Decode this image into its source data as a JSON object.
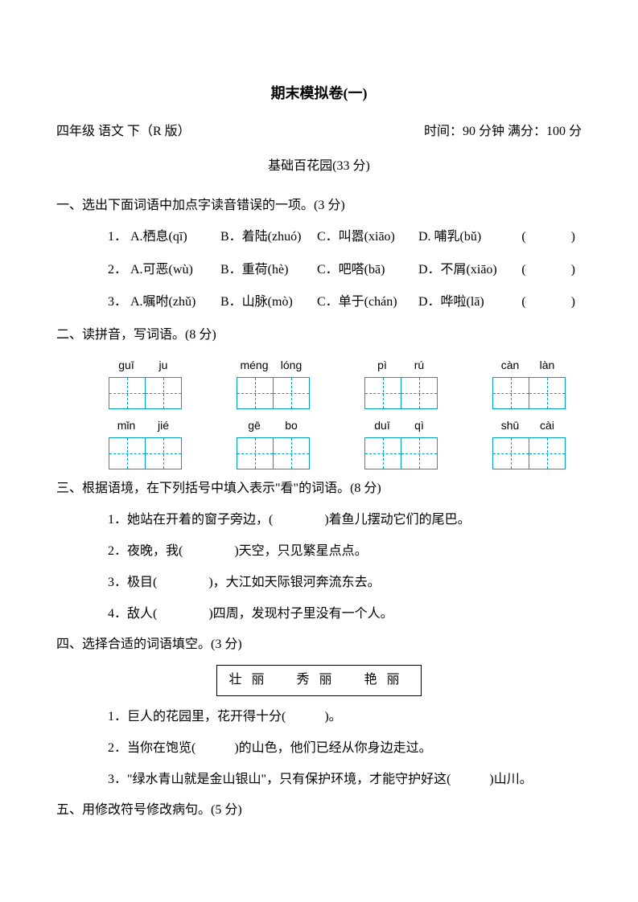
{
  "title": "期末模拟卷(一)",
  "meta": {
    "left": "四年级 语文 下（R 版）",
    "right": "时间：90 分钟 满分：100 分"
  },
  "subtitle": "基础百花园(33 分)",
  "section1": {
    "heading": "一、选出下面词语中加点字读音错误的一项。(3 分)",
    "items": [
      {
        "num": "1．",
        "a": "A.栖息(qī)",
        "b": "B．着陆(zhuó)",
        "c": "C．叫嚣(xiāo)",
        "d": "D. 哺乳(bǔ)",
        "paren": "(　　)"
      },
      {
        "num": "2．",
        "a": "A.可恶(wù)",
        "b": "B．重荷(hè)",
        "c": "C．吧嗒(bā)",
        "d": "D．不屑(xiāo)",
        "paren": "(　　)"
      },
      {
        "num": "3．",
        "a": "A.嘱咐(zhǔ)",
        "b": "B．山脉(mò)",
        "c": "C．单于(chán)",
        "d": "D．哗啦(lā)",
        "paren": "(　　)"
      }
    ]
  },
  "section2": {
    "heading": "二、读拼音，写词语。(8 分)",
    "rows": [
      [
        {
          "p1": "guī",
          "p2": "ju"
        },
        {
          "p1": "méng",
          "p2": "lóng"
        },
        {
          "p1": "pì",
          "p2": "rú"
        },
        {
          "p1": "càn",
          "p2": "làn"
        }
      ],
      [
        {
          "p1": "mǐn",
          "p2": "jié"
        },
        {
          "p1": "gē",
          "p2": "bo"
        },
        {
          "p1": "duī",
          "p2": "qì"
        },
        {
          "p1": "shū",
          "p2": "cài"
        }
      ]
    ]
  },
  "section3": {
    "heading": "三、根据语境，在下列括号中填入表示\"看\"的词语。(8 分)",
    "items": [
      {
        "num": "1．",
        "text": "她站在开着的窗子旁边，(　　　　)着鱼儿摆动它们的尾巴。"
      },
      {
        "num": "2．",
        "text": "夜晚，我(　　　　)天空，只见繁星点点。"
      },
      {
        "num": "3．",
        "text": "极目(　　　　)，大江如天际银河奔流东去。"
      },
      {
        "num": "4．",
        "text": "敌人(　　　　)四周，发现村子里没有一个人。"
      }
    ]
  },
  "section4": {
    "heading": "四、选择合适的词语填空。(3 分)",
    "wordbox": "壮丽　秀丽　艳丽",
    "items": [
      {
        "num": "1．",
        "text": "巨人的花园里，花开得十分(　　　)。"
      },
      {
        "num": "2．",
        "text": "当你在饱览(　　　)的山色，他们已经从你身边走过。"
      },
      {
        "num": "3．",
        "text": "\"绿水青山就是金山银山\"，只有保护环境，才能守护好这(　　　)山川。"
      }
    ]
  },
  "section5": {
    "heading": "五、用修改符号修改病句。(5 分)"
  },
  "colors": {
    "text": "#000000",
    "box_border": "#00a0c0",
    "background": "#ffffff"
  }
}
